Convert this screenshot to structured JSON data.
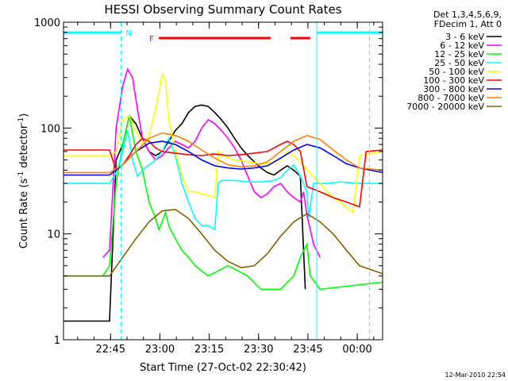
{
  "chart_data": {
    "type": "line",
    "title": "HESSI Observing Summary Count Rates",
    "xlabel": "Start Time (27-Oct-02 22:30:42)",
    "ylabel_main": "Count Rate (s",
    "ylabel_sup1": "-1",
    "ylabel_mid": " detector",
    "ylabel_sup2": "-1",
    "ylabel_end": ")",
    "xlim_minutes": [
      0,
      97
    ],
    "ylim": [
      1,
      1000
    ],
    "yscale": "log",
    "xticks": [
      {
        "label": "22:45",
        "min": 14.3
      },
      {
        "label": "23:00",
        "min": 29.3
      },
      {
        "label": "23:15",
        "min": 44.3
      },
      {
        "label": "23:30",
        "min": 59.3
      },
      {
        "label": "23:45",
        "min": 74.3
      },
      {
        "label": "00:00",
        "min": 89.3
      }
    ],
    "yticks": [
      {
        "label": "1000",
        "value": 1000
      },
      {
        "label": "100",
        "value": 100
      },
      {
        "label": "10",
        "value": 10
      },
      {
        "label": "1",
        "value": 1
      }
    ],
    "legend_header": [
      "Det 1,3,4,5,6,9,",
      "FDecim 1, Att 0"
    ],
    "series": [
      {
        "name": "3 - 6 keV",
        "color": "#000000",
        "x": [
          0,
          14,
          16,
          18,
          20,
          22,
          24,
          26,
          28,
          30,
          32,
          34,
          36,
          38,
          40,
          42,
          44,
          46,
          48,
          50,
          52,
          54,
          56,
          58,
          60,
          62,
          64,
          66,
          68,
          70,
          72,
          73.5
        ],
        "y": [
          1.5,
          1.5,
          50,
          70,
          130,
          110,
          80,
          60,
          55,
          60,
          75,
          95,
          110,
          140,
          160,
          165,
          160,
          140,
          120,
          100,
          80,
          65,
          55,
          48,
          42,
          38,
          36,
          40,
          44,
          40,
          35,
          3
        ]
      },
      {
        "name": "6 - 12 keV",
        "color": "#ff00ff",
        "x": [
          12,
          14,
          16,
          18,
          19.5,
          21,
          22.5,
          24,
          26,
          28,
          30,
          32,
          34,
          36,
          38,
          40,
          42,
          44,
          46,
          48,
          50,
          52,
          54,
          56,
          58,
          60,
          62,
          64,
          66,
          68,
          70,
          72,
          73,
          74,
          76,
          78
        ],
        "y": [
          6,
          7,
          100,
          250,
          360,
          300,
          150,
          80,
          60,
          50,
          55,
          65,
          75,
          70,
          65,
          75,
          100,
          120,
          110,
          95,
          80,
          65,
          50,
          35,
          25,
          22,
          24,
          28,
          30,
          25,
          22,
          20,
          25,
          15,
          8,
          6
        ]
      },
      {
        "name": "12 - 25 keV",
        "color": "#00ff00",
        "x": [
          0,
          12,
          14,
          16,
          18,
          20,
          22,
          24,
          26,
          28,
          29,
          30,
          31,
          32,
          34,
          36,
          38,
          40,
          44,
          50,
          56,
          60,
          66,
          70,
          72,
          74,
          75,
          78,
          97
        ],
        "y": [
          4,
          4,
          5,
          30,
          70,
          130,
          60,
          40,
          20,
          14,
          11,
          13,
          16,
          12,
          9,
          7,
          6,
          5,
          4,
          5,
          4,
          3,
          3,
          4,
          6,
          8,
          4,
          3,
          3.5
        ]
      },
      {
        "name": "25 - 50 keV",
        "color": "#00ffff",
        "x": [
          0,
          14,
          16,
          18,
          19.5,
          21,
          22.5,
          24,
          26,
          28,
          30,
          32,
          34,
          36,
          38,
          40,
          42,
          44,
          46,
          47,
          48,
          52,
          56,
          60,
          64,
          66,
          68,
          70,
          72,
          74,
          74.5,
          76,
          80,
          84,
          90,
          97
        ],
        "y": [
          30,
          30,
          38,
          60,
          95,
          50,
          35,
          40,
          45,
          50,
          60,
          80,
          55,
          30,
          20,
          14,
          12,
          12,
          11,
          30,
          32,
          32,
          31,
          31,
          32,
          34,
          40,
          45,
          35,
          25,
          14,
          30,
          30,
          31,
          30,
          30
        ]
      },
      {
        "name": "50 - 100 keV",
        "color": "#ffff00",
        "x": [
          0,
          14,
          16,
          18,
          20,
          22,
          24,
          26,
          28,
          30,
          31,
          32,
          34,
          36,
          38,
          40,
          42,
          44,
          46,
          47,
          48,
          52,
          56,
          60,
          64,
          66,
          68,
          70,
          72,
          74,
          76,
          78,
          80,
          84,
          88,
          90,
          97
        ],
        "y": [
          55,
          55,
          60,
          120,
          130,
          95,
          70,
          85,
          150,
          320,
          280,
          120,
          60,
          35,
          25,
          25,
          24,
          23,
          22,
          60,
          55,
          50,
          48,
          46,
          47,
          50,
          60,
          55,
          48,
          40,
          35,
          30,
          25,
          20,
          16,
          55,
          60
        ]
      },
      {
        "name": "100 - 300 keV",
        "color": "#ff0000",
        "x": [
          0,
          14,
          16,
          18,
          20,
          22,
          24,
          26,
          28,
          30,
          34,
          38,
          42,
          46,
          50,
          54,
          58,
          62,
          64,
          66,
          68,
          70,
          72,
          74,
          78,
          82,
          86,
          90,
          92,
          97
        ],
        "y": [
          62,
          62,
          40,
          45,
          55,
          70,
          80,
          75,
          65,
          60,
          58,
          56,
          55,
          57,
          55,
          56,
          58,
          60,
          65,
          70,
          75,
          70,
          60,
          28,
          25,
          22,
          20,
          18,
          60,
          62
        ]
      },
      {
        "name": "300 - 800 keV",
        "color": "#0000ff",
        "x": [
          0,
          14,
          18,
          22,
          26,
          30,
          34,
          38,
          42,
          46,
          50,
          54,
          58,
          62,
          66,
          70,
          74,
          78,
          82,
          86,
          90,
          97
        ],
        "y": [
          36,
          36,
          45,
          60,
          72,
          75,
          70,
          60,
          50,
          44,
          42,
          41,
          42,
          44,
          52,
          62,
          70,
          65,
          55,
          46,
          42,
          38
        ]
      },
      {
        "name": "800 - 7000 keV",
        "color": "#ff8000",
        "x": [
          0,
          14,
          18,
          22,
          26,
          30,
          34,
          38,
          42,
          46,
          50,
          54,
          58,
          62,
          66,
          70,
          74,
          78,
          82,
          86,
          90,
          97
        ],
        "y": [
          38,
          38,
          45,
          60,
          80,
          90,
          85,
          75,
          62,
          52,
          45,
          43,
          44,
          48,
          60,
          75,
          85,
          78,
          62,
          50,
          42,
          40
        ]
      },
      {
        "name": "7000 - 20000 keV",
        "color": "#806000",
        "x": [
          0,
          14,
          18,
          22,
          26,
          30,
          34,
          38,
          42,
          46,
          50,
          54,
          58,
          62,
          66,
          70,
          74,
          78,
          82,
          86,
          90,
          97
        ],
        "y": [
          4,
          4,
          6,
          9,
          13,
          16.5,
          17,
          14,
          10,
          7,
          5.5,
          4.8,
          5,
          6.5,
          9.5,
          13,
          15.5,
          13,
          10,
          7,
          5,
          4.2
        ]
      }
    ],
    "flag_bars": [
      {
        "label": "N",
        "color": "#00ffff",
        "segments": [
          [
            0,
            17.5
          ],
          [
            77,
            97
          ]
        ]
      },
      {
        "label": "F",
        "color": "#ff0000",
        "segments": [
          [
            29,
            63
          ],
          [
            69,
            75
          ]
        ]
      }
    ],
    "vlines": [
      {
        "min": 17.5,
        "color": "#00ffff",
        "style": "dashed"
      },
      {
        "min": 77,
        "color": "#00ffff",
        "style": "solid"
      },
      {
        "min": 93,
        "color": "#00ffff",
        "style": "dashed"
      }
    ],
    "grid": false,
    "legend_position": "top-right"
  },
  "footer": {
    "date": "12-Mar-2010 22:54"
  }
}
